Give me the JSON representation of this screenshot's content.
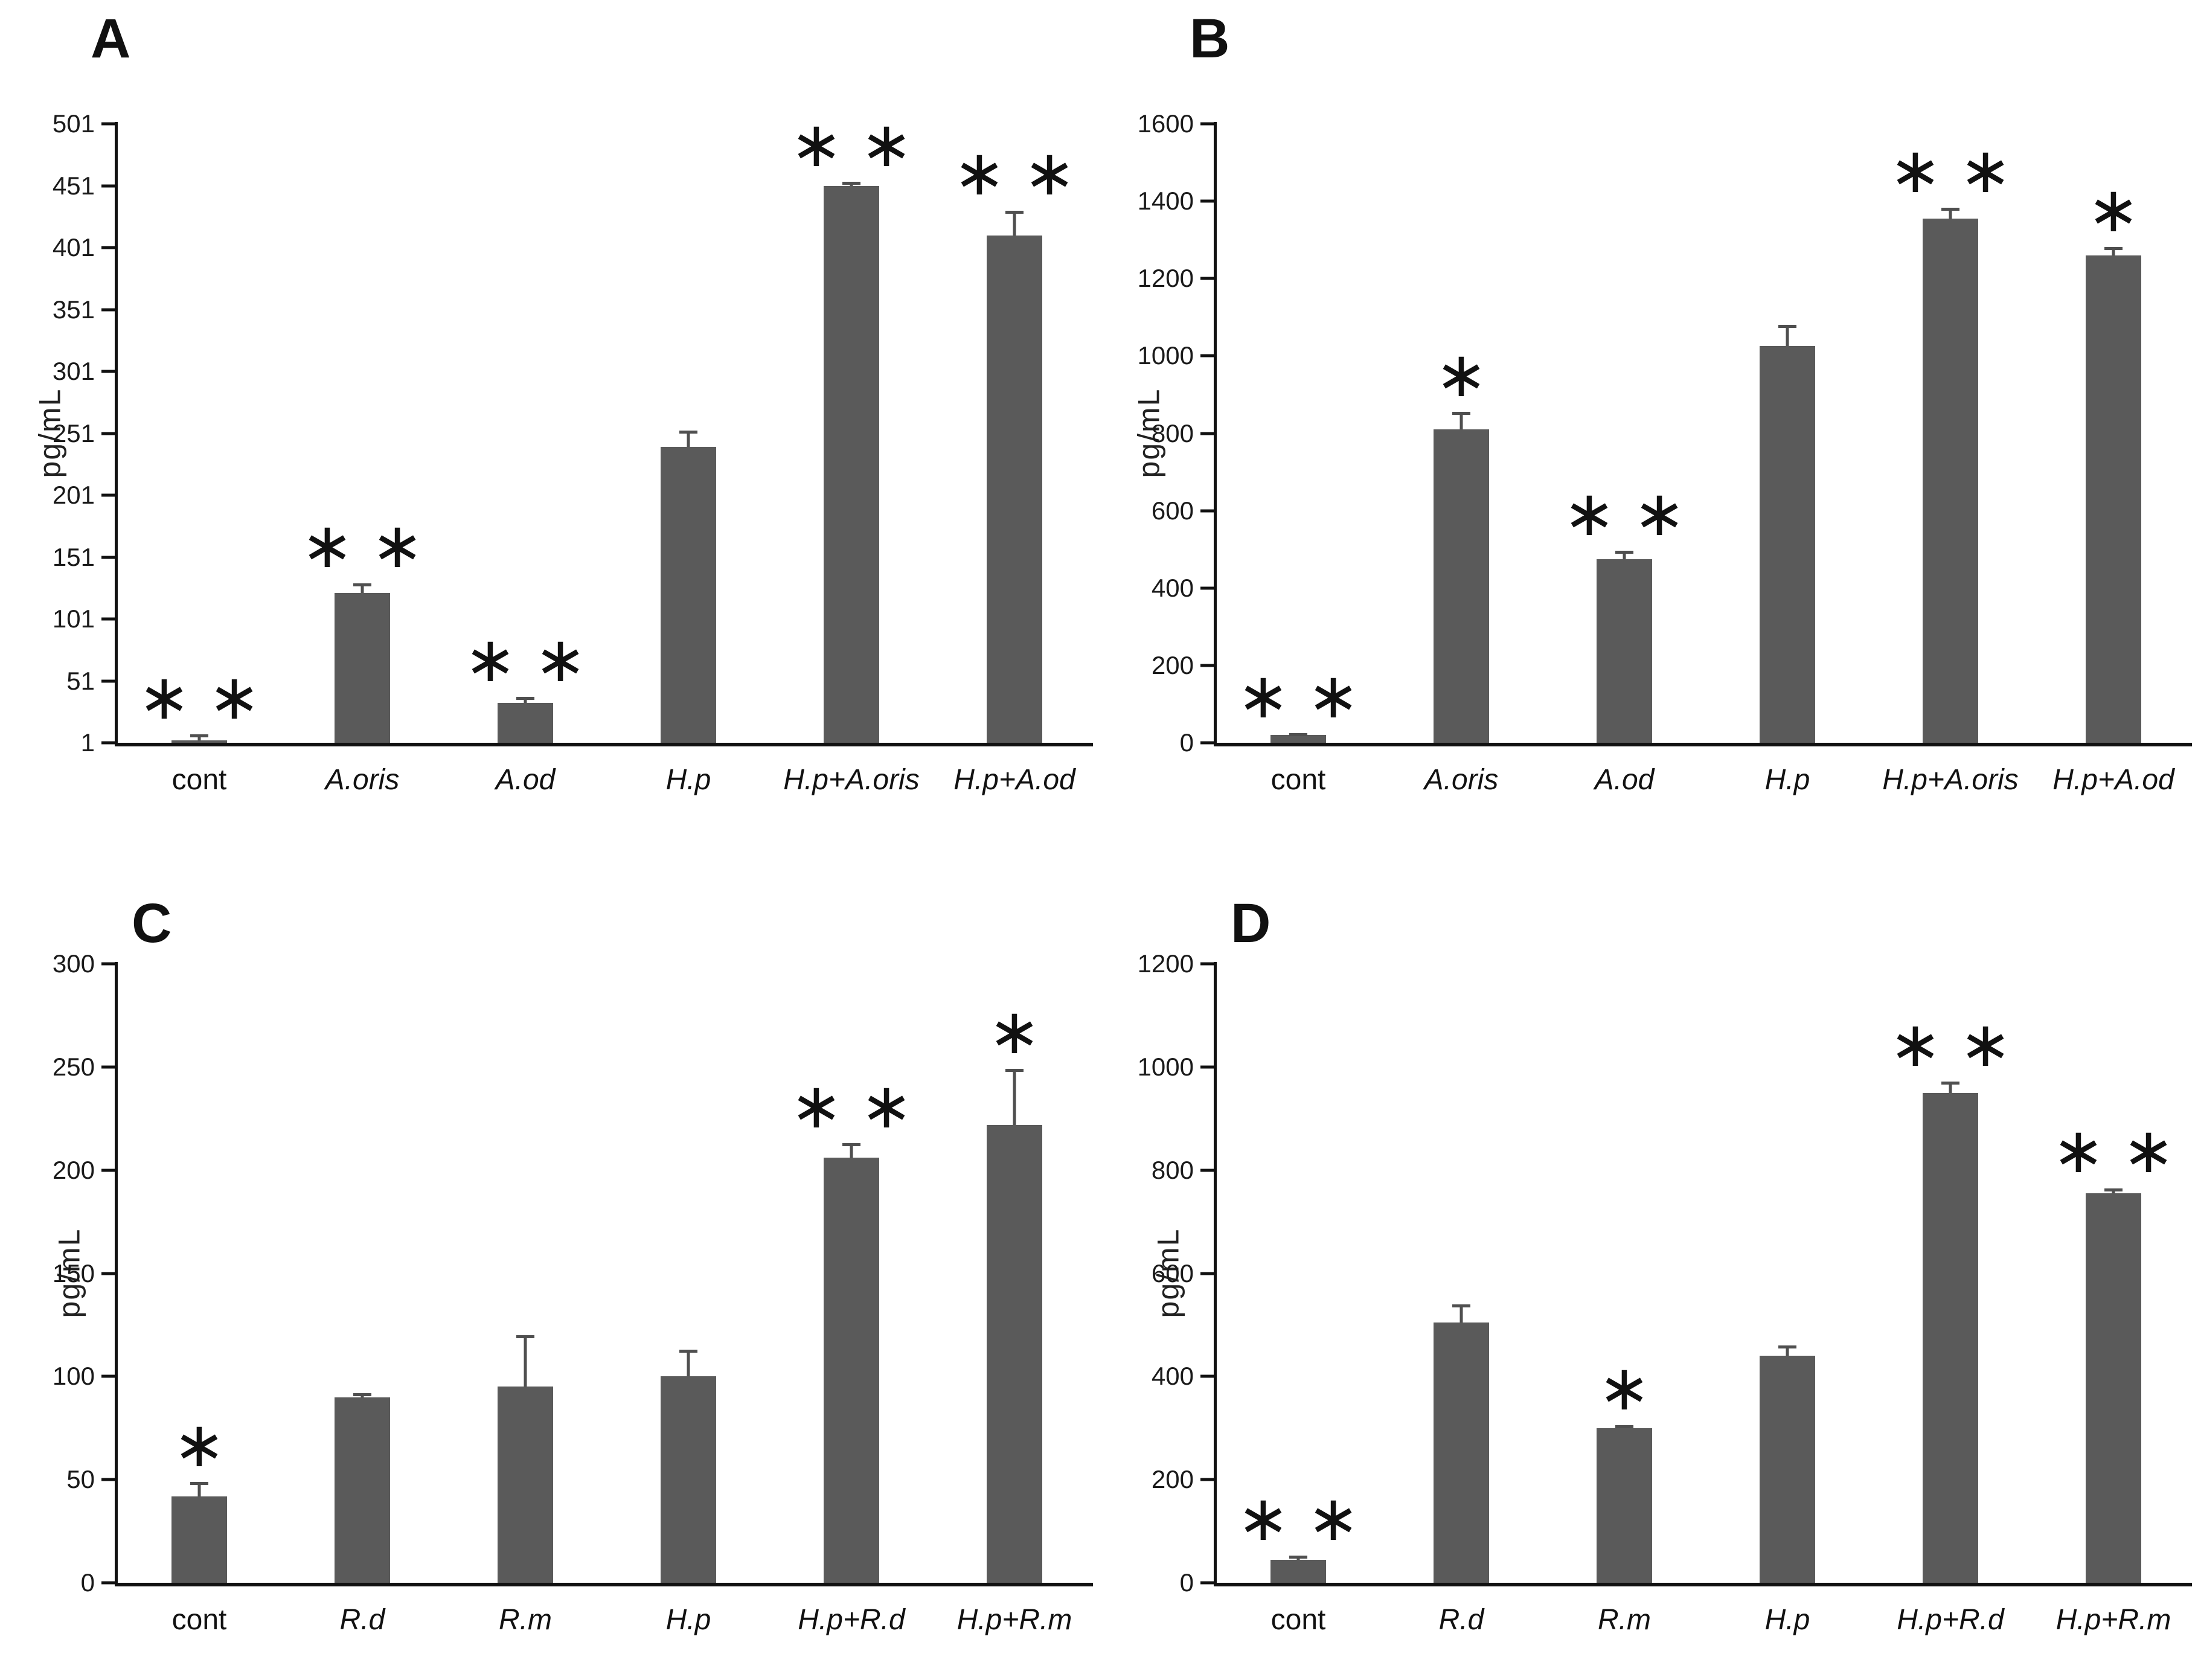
{
  "figure": {
    "background": "#ffffff",
    "panel_letters": [
      "A",
      "B",
      "C",
      "D"
    ]
  },
  "colors": {
    "bar": "#5a5a5a",
    "error_bar": "#4f4f4f",
    "axis": "#111111"
  },
  "chart_data": [
    {
      "type": "bar",
      "title": "A",
      "ylabel": "pg/mL",
      "ylim": [
        1,
        501
      ],
      "yticks": [
        1,
        51,
        101,
        151,
        201,
        251,
        301,
        351,
        401,
        451,
        501
      ],
      "categories": [
        "cont",
        "A.oris",
        "A.od",
        "H.p",
        "H.p+A.oris",
        "H.p+A.od"
      ],
      "categories_italic": [
        false,
        true,
        true,
        true,
        true,
        true
      ],
      "values": [
        3,
        122,
        33,
        240,
        451,
        411
      ],
      "errors": [
        5,
        8,
        5,
        13,
        3,
        20
      ],
      "sig": [
        "∗ ∗",
        "∗ ∗",
        "∗ ∗",
        "",
        "∗ ∗",
        "∗ ∗"
      ],
      "grid": false,
      "legend": null
    },
    {
      "type": "bar",
      "title": "B",
      "ylabel": "pg/mL",
      "ylim": [
        0,
        1600
      ],
      "yticks": [
        0,
        200,
        400,
        600,
        800,
        1000,
        1200,
        1400,
        1600
      ],
      "categories": [
        "cont",
        "A.oris",
        "A.od",
        "H.p",
        "H.p+A.oris",
        "H.p+A.od"
      ],
      "categories_italic": [
        false,
        true,
        true,
        true,
        true,
        true
      ],
      "values": [
        20,
        810,
        475,
        1025,
        1355,
        1260
      ],
      "errors": [
        5,
        45,
        22,
        55,
        28,
        22
      ],
      "sig": [
        "∗ ∗",
        "∗",
        "∗ ∗",
        "",
        "∗ ∗",
        "∗"
      ],
      "grid": false,
      "legend": null
    },
    {
      "type": "bar",
      "title": "C",
      "ylabel": "pg/mL",
      "ylim": [
        0,
        300
      ],
      "yticks": [
        0,
        50,
        100,
        150,
        200,
        250,
        300
      ],
      "categories": [
        "cont",
        "R.d",
        "R.m",
        "H.p",
        "H.p+R.d",
        "H.p+R.m"
      ],
      "categories_italic": [
        false,
        true,
        true,
        true,
        true,
        true
      ],
      "values": [
        42,
        90,
        95,
        100,
        206,
        222
      ],
      "errors": [
        7,
        2,
        25,
        13,
        7,
        27
      ],
      "sig": [
        "∗",
        "",
        "",
        "",
        "∗ ∗",
        "∗"
      ],
      "grid": false,
      "legend": null
    },
    {
      "type": "bar",
      "title": "D",
      "ylabel": "pg/mL",
      "ylim": [
        0,
        1200
      ],
      "yticks": [
        0,
        200,
        400,
        600,
        800,
        1000,
        1200
      ],
      "categories": [
        "cont",
        "R.d",
        "R.m",
        "H.p",
        "H.p+R.d",
        "H.p+R.m"
      ],
      "categories_italic": [
        false,
        true,
        true,
        true,
        true,
        true
      ],
      "values": [
        45,
        505,
        300,
        440,
        950,
        755
      ],
      "errors": [
        8,
        35,
        5,
        20,
        22,
        10
      ],
      "sig": [
        "∗ ∗",
        "",
        "∗",
        "",
        "∗ ∗",
        "∗ ∗"
      ],
      "grid": false,
      "legend": null
    }
  ]
}
